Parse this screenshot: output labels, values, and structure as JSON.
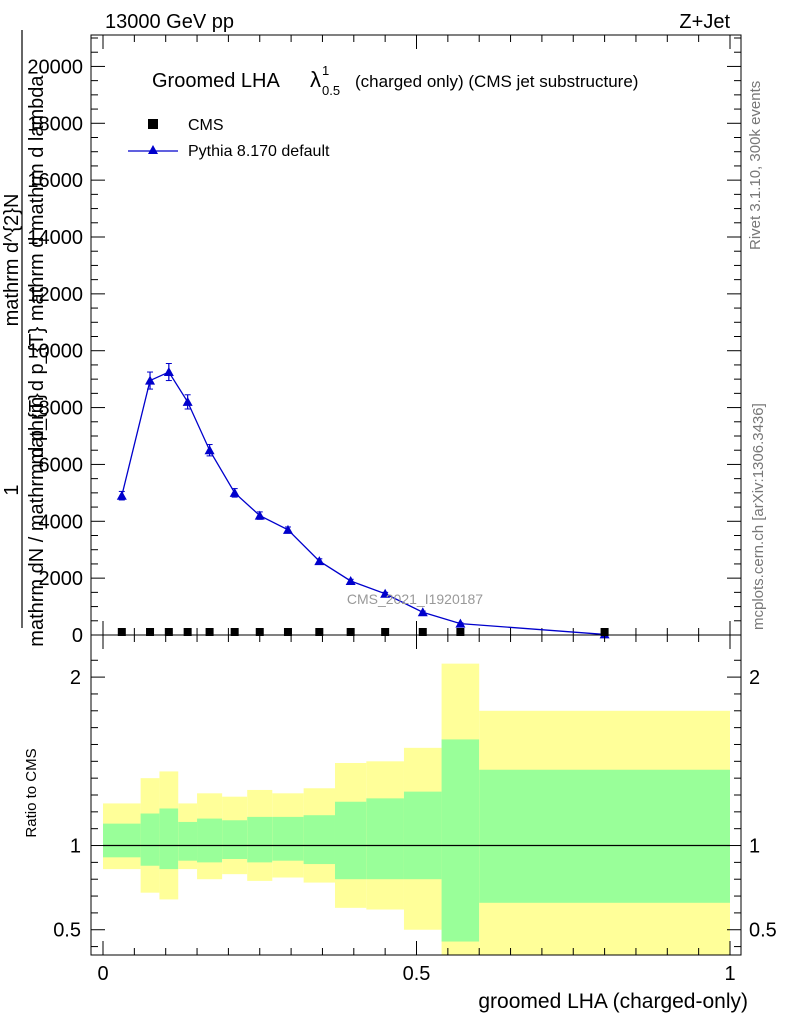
{
  "header": {
    "left": "13000 GeV pp",
    "right": "Z+Jet"
  },
  "plot_title": {
    "main": "Groomed LHA",
    "lambda": "λ",
    "sup": "1",
    "sub": "0.5",
    "rest": "(charged only) (CMS jet substructure)"
  },
  "side_labels": {
    "rivet": "Rivet 3.1.10,  300k events",
    "mcplots": "mcplots.cern.ch [arXiv:1306.3436]"
  },
  "watermark": "CMS_2021_I1920187",
  "y_label_numerator": "1",
  "y_label_lines": [
    "mathrm d^{2}N",
    "mathrm d p_{T} mathrm d mathrm d lambda"
  ],
  "y_label_denominator": "mathrm dN / mathrm d p_{T}",
  "x_label": "groomed LHA (charged-only)",
  "ratio_label": "Ratio to CMS",
  "legend": [
    {
      "label": "CMS",
      "color": "#000000",
      "marker": "square"
    },
    {
      "label": "Pythia 8.170 default",
      "color": "#0000cc",
      "marker": "triangle"
    }
  ],
  "chart_data": [
    {
      "type": "line",
      "title": "Groomed LHA λ^1_0.5 (charged only) (CMS jet substructure)",
      "xlabel": "groomed LHA (charged-only)",
      "xlim": [
        0,
        1
      ],
      "ylim": [
        0,
        21000
      ],
      "yticks": [
        0,
        2000,
        4000,
        6000,
        8000,
        10000,
        12000,
        14000,
        16000,
        18000,
        20000
      ],
      "ytick_labels": [
        "0",
        "2000",
        "4000",
        "6000",
        "8000",
        "10000",
        "12000",
        "14000",
        "16000",
        "18000",
        "20000"
      ],
      "series": [
        {
          "name": "CMS",
          "color": "#000000",
          "x": [
            0.03,
            0.075,
            0.105,
            0.135,
            0.17,
            0.21,
            0.25,
            0.295,
            0.345,
            0.395,
            0.45,
            0.51,
            0.57,
            0.8
          ],
          "y": [
            0,
            0,
            0,
            0,
            0,
            0,
            0,
            0,
            0,
            0,
            0,
            0,
            0,
            0
          ]
        },
        {
          "name": "Pythia 8.170 default",
          "color": "#0000cc",
          "x": [
            0.03,
            0.075,
            0.105,
            0.135,
            0.17,
            0.21,
            0.25,
            0.295,
            0.345,
            0.395,
            0.45,
            0.51,
            0.57,
            0.8
          ],
          "y": [
            4900,
            8950,
            9250,
            8200,
            6500,
            5000,
            4200,
            3700,
            2600,
            1900,
            1450,
            800,
            400,
            20
          ],
          "yerr": [
            150,
            300,
            300,
            250,
            200,
            150,
            130,
            100,
            80,
            60,
            50,
            40,
            30,
            5
          ]
        }
      ]
    },
    {
      "type": "area",
      "ylabel": "Ratio to CMS",
      "xlim": [
        0,
        1
      ],
      "ylim": [
        0.35,
        2.25
      ],
      "yticks": [
        0.5,
        1,
        2
      ],
      "ytick_labels": [
        "0.5",
        "1",
        "2"
      ],
      "xticks": [
        0,
        0.5,
        1
      ],
      "xtick_labels": [
        "0",
        "0.5",
        "1"
      ],
      "reference": 1,
      "bins": [
        0,
        0.06,
        0.09,
        0.12,
        0.15,
        0.19,
        0.23,
        0.27,
        0.32,
        0.37,
        0.42,
        0.48,
        0.54,
        0.6,
        1.0
      ],
      "green_band": [
        [
          0.93,
          1.13
        ],
        [
          0.88,
          1.19
        ],
        [
          0.86,
          1.22
        ],
        [
          0.91,
          1.14
        ],
        [
          0.9,
          1.16
        ],
        [
          0.92,
          1.15
        ],
        [
          0.9,
          1.17
        ],
        [
          0.91,
          1.17
        ],
        [
          0.89,
          1.18
        ],
        [
          0.8,
          1.26
        ],
        [
          0.8,
          1.28
        ],
        [
          0.8,
          1.32
        ],
        [
          0.43,
          1.63
        ],
        [
          0.66,
          1.45
        ]
      ],
      "yellow_band": [
        [
          0.86,
          1.25
        ],
        [
          0.72,
          1.4
        ],
        [
          0.68,
          1.44
        ],
        [
          0.86,
          1.25
        ],
        [
          0.8,
          1.31
        ],
        [
          0.83,
          1.29
        ],
        [
          0.79,
          1.33
        ],
        [
          0.81,
          1.31
        ],
        [
          0.78,
          1.34
        ],
        [
          0.63,
          1.49
        ],
        [
          0.62,
          1.5
        ],
        [
          0.5,
          1.58
        ],
        [
          0.35,
          2.08
        ],
        [
          0.35,
          1.8
        ]
      ],
      "colors": {
        "green": "#99ff99",
        "yellow": "#ffff99"
      }
    }
  ]
}
